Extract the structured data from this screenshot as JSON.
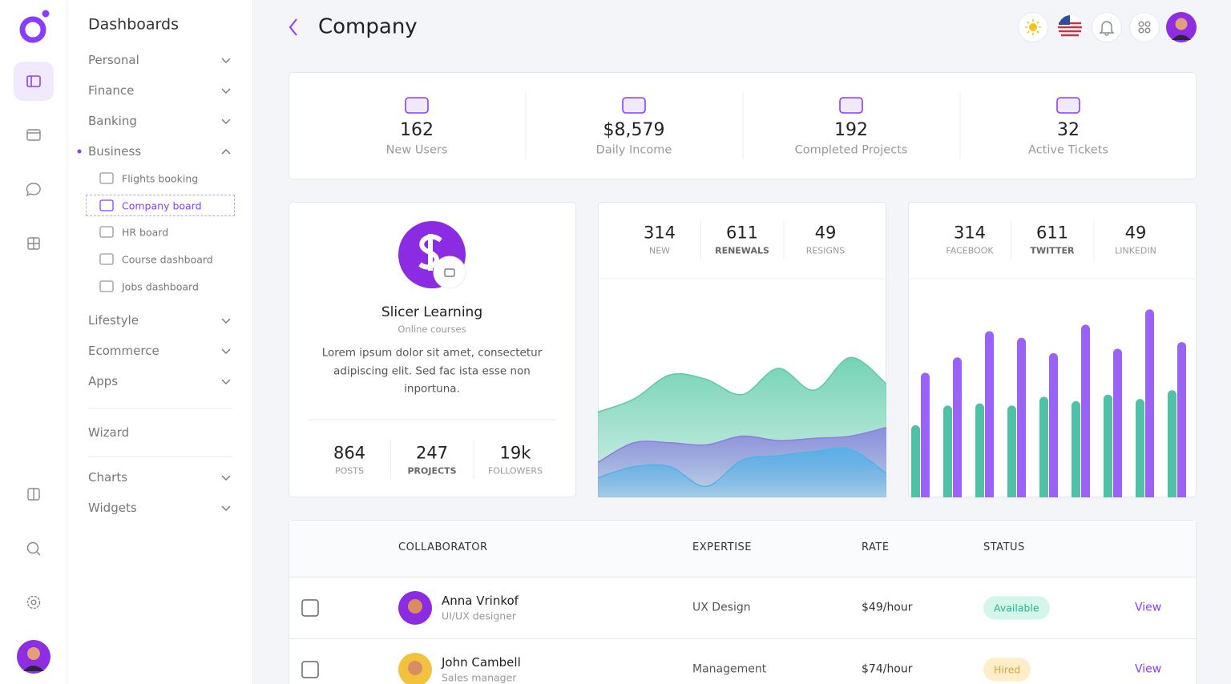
{
  "sidebar": {
    "title": "Dashboards",
    "menu": [
      {
        "label": "Personal"
      },
      {
        "label": "Finance"
      },
      {
        "label": "Banking"
      },
      {
        "label": "Business",
        "items": [
          "Flights booking",
          "Company board",
          "HR board",
          "Course dashboard",
          "Jobs dashboard"
        ]
      },
      {
        "label": "Lifestyle"
      },
      {
        "label": "Ecommerce"
      },
      {
        "label": "Apps"
      },
      {
        "label": "Wizard"
      },
      {
        "label": "Charts"
      },
      {
        "label": "Widgets"
      }
    ]
  },
  "header": {
    "title": "Company"
  },
  "stats": [
    {
      "value": 162,
      "label": "New Users"
    },
    {
      "value": "$8,579",
      "label": "Daily Income"
    },
    {
      "value": 192,
      "label": "Completed Projects"
    },
    {
      "value": 32,
      "label": "Active Tickets"
    }
  ],
  "profile": {
    "name": "Slicer Learning",
    "subtitle": "Online courses",
    "description": "Lorem ipsum dolor sit amet, consectetur adipiscing elit. Sed fac ista esse non inportuna.",
    "stats": [
      {
        "value": 864,
        "label": "POSTS"
      },
      {
        "value": 247,
        "label": "PROJECTS"
      },
      {
        "value": "19k",
        "label": "FOLLOWERS"
      }
    ]
  },
  "chart_data": [
    {
      "type": "area",
      "summary": [
        {
          "value": 314,
          "label": "NEW"
        },
        {
          "value": 611,
          "label": "RENEWALS"
        },
        {
          "value": 49,
          "label": "RESIGNS"
        }
      ],
      "categories": [
        null,
        null,
        null,
        null,
        null,
        null,
        null,
        null,
        null
      ],
      "ylim": [
        0,
        100
      ],
      "series": [
        {
          "color": "#5ccaa8",
          "values": [
            39,
            45,
            56,
            54,
            47,
            59,
            49,
            64,
            52
          ]
        },
        {
          "color": "#8a7fe0",
          "values": [
            16,
            25,
            25,
            24,
            28,
            26,
            27,
            28,
            32
          ]
        },
        {
          "color": "#4fb3e8",
          "values": [
            9,
            14,
            14,
            5,
            17,
            19,
            21,
            22,
            11
          ]
        }
      ]
    },
    {
      "type": "bar",
      "summary": [
        {
          "value": 314,
          "label": "FACEBOOK"
        },
        {
          "value": 611,
          "label": "TWITTER"
        },
        {
          "value": 49,
          "label": "LINKEDIN"
        }
      ],
      "categories": [
        null,
        null,
        null,
        null,
        null,
        null,
        null,
        null,
        null
      ],
      "ylim": [
        0,
        100
      ],
      "series": [
        {
          "color": "#4fc1a6",
          "values": [
            33,
            42,
            43,
            42,
            46,
            44,
            47,
            45,
            49
          ]
        },
        {
          "color": "#9b63f5",
          "values": [
            57,
            64,
            76,
            73,
            66,
            79,
            68,
            86,
            71
          ]
        }
      ]
    }
  ],
  "table": {
    "columns": [
      "COLLABORATOR",
      "EXPERTISE",
      "RATE",
      "STATUS"
    ],
    "rows": [
      {
        "name": "Anna Vrinkof",
        "role": "UI/UX designer",
        "expertise": "UX Design",
        "rate": "$49/hour",
        "status": "Available",
        "action": "View"
      },
      {
        "name": "John Cambell",
        "role": "Sales manager",
        "expertise": "Management",
        "rate": "$74/hour",
        "status": "Hired",
        "action": "View"
      }
    ]
  }
}
